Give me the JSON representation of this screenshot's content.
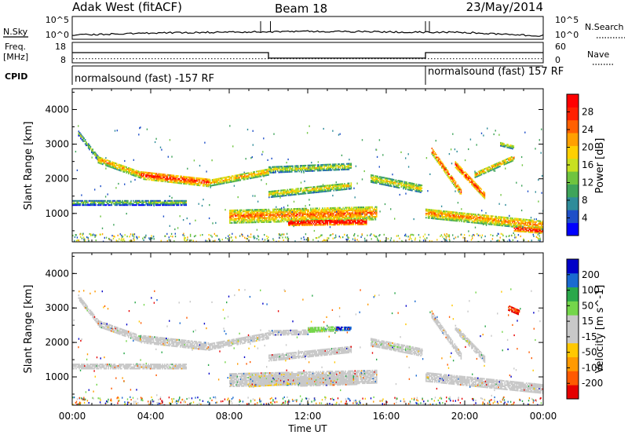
{
  "header": {
    "radar_label": "Adak West (fitACF)",
    "beam_label": "Beam 18",
    "date_label": "23/May/2014"
  },
  "noise_panel": {
    "left_label": "N.Sky",
    "right_label": "N.Search",
    "left_ticks": [
      "10^5",
      "10^0"
    ],
    "right_ticks": [
      "10^5",
      "10^0"
    ]
  },
  "freq_panel": {
    "label_line1": "Freq.",
    "label_line2": "[MHz]",
    "right_label": "Nave",
    "left_ticks": [
      "18",
      "8"
    ],
    "right_ticks": [
      "60",
      "0"
    ]
  },
  "cpid_panel": {
    "label": "CPID",
    "programs": [
      "normalsound (fast) -157 RF",
      "normalsound (fast) 157 RF"
    ]
  },
  "power_panel": {
    "ylabel": "Slant Range [km]",
    "yticks": [
      "4000",
      "3000",
      "2000",
      "1000"
    ],
    "colorbar_label": "Power [dB]",
    "colorbar_ticks": [
      "28",
      "24",
      "20",
      "16",
      "12",
      "8",
      "4"
    ]
  },
  "velocity_panel": {
    "ylabel": "Slant Range [km]",
    "yticks": [
      "4000",
      "3000",
      "2000",
      "1000"
    ],
    "colorbar_label": "Velocity [m s^-1]",
    "colorbar_ticks": [
      "200",
      "100",
      "50",
      "15",
      "-15",
      "-50",
      "-100",
      "-200"
    ]
  },
  "x_axis": {
    "label": "Time UT",
    "ticks": [
      "00:00",
      "04:00",
      "08:00",
      "12:00",
      "16:00",
      "20:00",
      "00:00"
    ]
  },
  "chart_data": {
    "type": "heatmap",
    "title": "Adak West (fitACF) Beam 18 23/May/2014",
    "xlabel": "Time UT",
    "xlim_hours": [
      0,
      24
    ],
    "ylim_km": [
      180,
      4600
    ],
    "power_scale_db": [
      0,
      30
    ],
    "velocity_scale": [
      -250,
      250
    ],
    "colors": {
      "power": [
        "#0000ff",
        "#1e4fc8",
        "#2f8c9a",
        "#3fa45a",
        "#6fc43f",
        "#c8e020",
        "#ffd000",
        "#ffa000",
        "#ff6000",
        "#ff2000",
        "#ff0000"
      ],
      "velocity": [
        "#e60000",
        "#ff5a00",
        "#ff9a00",
        "#ffc800",
        "#c8c8c8",
        "#c8c8c8",
        "#74d64a",
        "#2aa84a",
        "#1a6ad0",
        "#0000c8"
      ]
    },
    "noise": {
      "segments": [
        {
          "hour_start": 0,
          "hour_end": 4,
          "value_start": 0.18,
          "value_end": 0.28
        },
        {
          "hour_start": 4,
          "hour_end": 12,
          "value_start": 0.28,
          "value_end": 0.35
        },
        {
          "hour_start": 12,
          "hour_end": 20,
          "value_start": 0.35,
          "value_end": 0.3
        },
        {
          "hour_start": 20,
          "hour_end": 24,
          "value_start": 0.3,
          "value_end": 0.15
        }
      ],
      "spikes_hours": [
        9.6,
        10.1,
        18.0,
        18.2
      ]
    },
    "frequency": {
      "steps": [
        {
          "hour_start": 0,
          "hour_end": 10,
          "mhz": 14.5
        },
        {
          "hour_start": 10,
          "hour_end": 18,
          "mhz": 11.0
        },
        {
          "hour_start": 18,
          "hour_end": 24,
          "mhz": 14.5
        }
      ],
      "nave_dotted_level": 12
    },
    "cpid_change_hour": 18.0,
    "power_bands": [
      {
        "t_start": 0.3,
        "t_end": 1.4,
        "r_start": 3300,
        "r_end": 2500,
        "width": 140,
        "db": 10
      },
      {
        "t_start": 1.3,
        "t_end": 3.5,
        "r_start": 2550,
        "r_end": 2100,
        "width": 200,
        "db": 16
      },
      {
        "t_start": 3.5,
        "t_end": 7.0,
        "r_start": 2100,
        "r_end": 1880,
        "width": 240,
        "db": 21
      },
      {
        "t_start": 7.0,
        "t_end": 10.0,
        "r_start": 1880,
        "r_end": 2200,
        "width": 200,
        "db": 16
      },
      {
        "t_start": 10.0,
        "t_end": 14.2,
        "r_start": 2250,
        "r_end": 2350,
        "width": 180,
        "db": 12
      },
      {
        "t_start": 10.0,
        "t_end": 14.2,
        "r_start": 1550,
        "r_end": 1800,
        "width": 200,
        "db": 13
      },
      {
        "t_start": 0.0,
        "t_end": 5.8,
        "r_start": 1300,
        "r_end": 1300,
        "width": 150,
        "db": 8
      },
      {
        "t_start": 8.0,
        "t_end": 15.5,
        "r_start": 900,
        "r_end": 1000,
        "width": 380,
        "db": 18
      },
      {
        "t_start": 11.0,
        "t_end": 15.0,
        "r_start": 720,
        "r_end": 750,
        "width": 160,
        "db": 26
      },
      {
        "t_start": 15.2,
        "t_end": 17.8,
        "r_start": 2000,
        "r_end": 1700,
        "width": 220,
        "db": 13
      },
      {
        "t_start": 18.3,
        "t_end": 19.8,
        "r_start": 2800,
        "r_end": 1600,
        "width": 200,
        "db": 20
      },
      {
        "t_start": 19.5,
        "t_end": 21.0,
        "r_start": 2400,
        "r_end": 1500,
        "width": 180,
        "db": 22
      },
      {
        "t_start": 20.5,
        "t_end": 22.5,
        "r_start": 2100,
        "r_end": 2600,
        "width": 150,
        "db": 16
      },
      {
        "t_start": 18.0,
        "t_end": 24.0,
        "r_start": 1000,
        "r_end": 650,
        "width": 280,
        "db": 17
      },
      {
        "t_start": 22.5,
        "t_end": 24.0,
        "r_start": 550,
        "r_end": 480,
        "width": 140,
        "db": 24
      },
      {
        "t_start": 21.8,
        "t_end": 22.5,
        "r_start": 3000,
        "r_end": 2900,
        "width": 120,
        "db": 12
      }
    ],
    "velocity_bands": [
      {
        "t_start": 0.3,
        "t_end": 1.4,
        "r_start": 3300,
        "r_end": 2500,
        "width": 140,
        "v": 0
      },
      {
        "t_start": 1.3,
        "t_end": 3.5,
        "r_start": 2550,
        "r_end": 2100,
        "width": 200,
        "v": 0
      },
      {
        "t_start": 3.5,
        "t_end": 7.0,
        "r_start": 2100,
        "r_end": 1880,
        "width": 240,
        "v": 0
      },
      {
        "t_start": 7.0,
        "t_end": 10.0,
        "r_start": 1880,
        "r_end": 2200,
        "width": 200,
        "v": 0
      },
      {
        "t_start": 10.0,
        "t_end": 12.0,
        "r_start": 2280,
        "r_end": 2300,
        "width": 160,
        "v": 0
      },
      {
        "t_start": 12.0,
        "t_end": 13.5,
        "r_start": 2350,
        "r_end": 2380,
        "width": 130,
        "v": 60
      },
      {
        "t_start": 13.4,
        "t_end": 14.2,
        "r_start": 2400,
        "r_end": 2400,
        "width": 120,
        "v": 200
      },
      {
        "t_start": 10.0,
        "t_end": 14.2,
        "r_start": 1550,
        "r_end": 1800,
        "width": 200,
        "v": -30
      },
      {
        "t_start": 0.0,
        "t_end": 5.8,
        "r_start": 1300,
        "r_end": 1300,
        "width": 150,
        "v": 0
      },
      {
        "t_start": 8.0,
        "t_end": 15.5,
        "r_start": 900,
        "r_end": 1000,
        "width": 380,
        "v": 0
      },
      {
        "t_start": 9.0,
        "t_end": 11.5,
        "r_start": 850,
        "r_end": 950,
        "width": 300,
        "v": -40
      },
      {
        "t_start": 11.5,
        "t_end": 14.5,
        "r_start": 850,
        "r_end": 900,
        "width": 260,
        "v": -30
      },
      {
        "t_start": 15.2,
        "t_end": 17.8,
        "r_start": 2000,
        "r_end": 1700,
        "width": 220,
        "v": 40
      },
      {
        "t_start": 18.3,
        "t_end": 19.8,
        "r_start": 2800,
        "r_end": 1600,
        "width": 200,
        "v": 30
      },
      {
        "t_start": 19.5,
        "t_end": 21.0,
        "r_start": 2400,
        "r_end": 1500,
        "width": 180,
        "v": 0
      },
      {
        "t_start": 18.0,
        "t_end": 24.0,
        "r_start": 1000,
        "r_end": 650,
        "width": 280,
        "v": 0
      },
      {
        "t_start": 22.2,
        "t_end": 22.8,
        "r_start": 3000,
        "r_end": 2850,
        "width": 150,
        "v": -200
      }
    ]
  }
}
